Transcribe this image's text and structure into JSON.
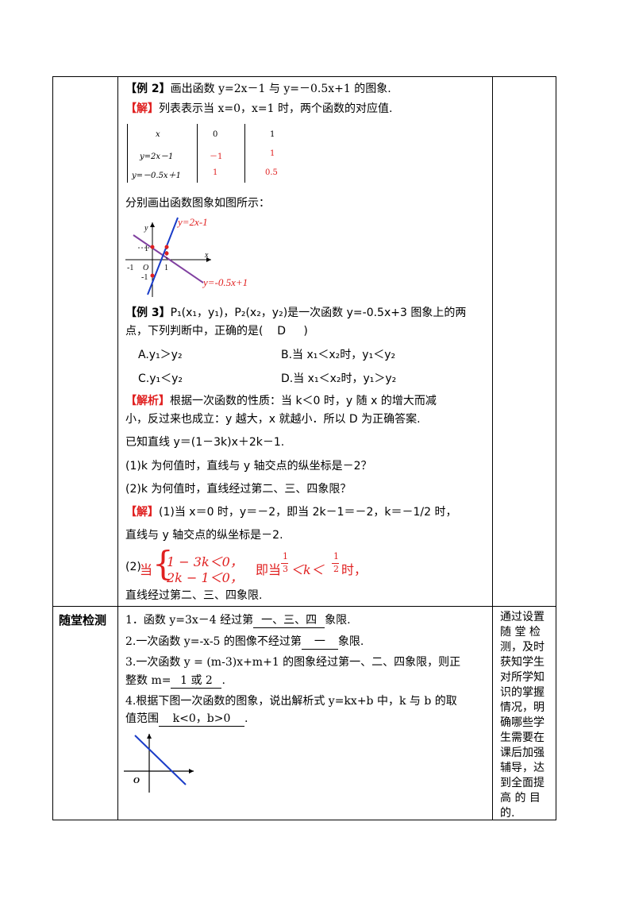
{
  "example2": {
    "tag": "【例 2】",
    "text": "画出函数 y=2x－1 与 y=－0.5x+1 的图象.",
    "sol_tag": "【解】",
    "sol_text": "列表表示当 x=0，x=1 时，两个函数的对应值.",
    "table": {
      "rows": [
        [
          "x",
          "0",
          "1"
        ],
        [
          "y=2x－1",
          "－1",
          "1"
        ],
        [
          "y=－0.5x＋1",
          "1",
          "0.5"
        ]
      ]
    },
    "draw_text": "分别画出函数图象如图所示：",
    "graph": {
      "label1": "y=2x-1",
      "label2": "y=-0.5x+1",
      "axis_x": "x",
      "axis_y": "y",
      "origin": "O",
      "tick_1": "1",
      "tick_neg1": "-1",
      "tick_1y": "1",
      "tick_neg1y": "-1"
    }
  },
  "example3": {
    "tag": "【例 3】",
    "text1": "P₁(x₁，y₁)，P₂(x₂，y₂)是一次函数 y=-0.5x+3 图象上的两",
    "text2": "点，下列判断中，正确的是(",
    "answer": "D",
    "close": ")",
    "optA": "A.y₁＞y₂",
    "optB": "B.当 x₁＜x₂时，y₁＜y₂",
    "optC": "C.y₁＜y₂",
    "optD": "D.当 x₁＜x₂时，y₁＞y₂",
    "analysis_tag": "【解析】",
    "analysis1": "根据一次函数的性质：当 k＜0 时，y 随 x 的增大而减",
    "analysis2": "小，反过来也成立：y 越大，x 就越小．所以 D 为正确答案."
  },
  "example4": {
    "stem": "已知直线 y＝(1－3k)x＋2k－1.",
    "q1": "(1)k 为何值时，直线与 y 轴交点的纵坐标是－2？",
    "q2": "(2)k 为何值时，直线经过第二、三、四象限？",
    "sol_tag": "【解】",
    "sol1": "(1)当 x＝0 时，y＝－2，即当 2k－1＝－2，k＝－1/2 时，",
    "sol1b": "直线与 y 轴交点的纵坐标是－2.",
    "sol2_prefix": "(2)",
    "sol2_when": "当",
    "ineq1": "1 − 3k＜0，",
    "ineq2": "2k − 1＜0，",
    "sol2_mid": "即当",
    "frac1_num": "1",
    "frac1_den": "3",
    "lt": "＜k＜",
    "frac2_num": "1",
    "frac2_den": "2",
    "sol2_end": "时，",
    "sol2b": "直线经过第二、三、四象限."
  },
  "section": {
    "title": "随堂检测",
    "q1_pre": "1．函数 y=3x－4 经过第",
    "q1_ans": "一、三、四",
    "q1_post": "象限.",
    "q2_pre": "2.一次函数 y=-x-5 的图像不经过第",
    "q2_ans": "一",
    "q2_post": "象限.",
    "q3_line1": "3.一次函数 y = (m-3)x+m+1 的图象经过第一、二、四象限，则正",
    "q3_pre": "整数 m=",
    "q3_ans": "1 或 2",
    "q3_post": ".",
    "q4_line1": "4.根据下图一次函数的图象，说出解析式 y=kx+b 中，k 与 b 的取",
    "q4_pre": "值范围",
    "q4_ans": "k<0，b>0",
    "q4_post": ".",
    "graph_origin": "O",
    "note": [
      "通过设置",
      "随 堂 检",
      "测，及时",
      "获知学生",
      "对所学知",
      "识的掌握",
      "情况，明",
      "确哪些学",
      "生需要在",
      "课后加强",
      "辅导，达",
      "到全面提",
      "高 的 目",
      "的."
    ]
  }
}
